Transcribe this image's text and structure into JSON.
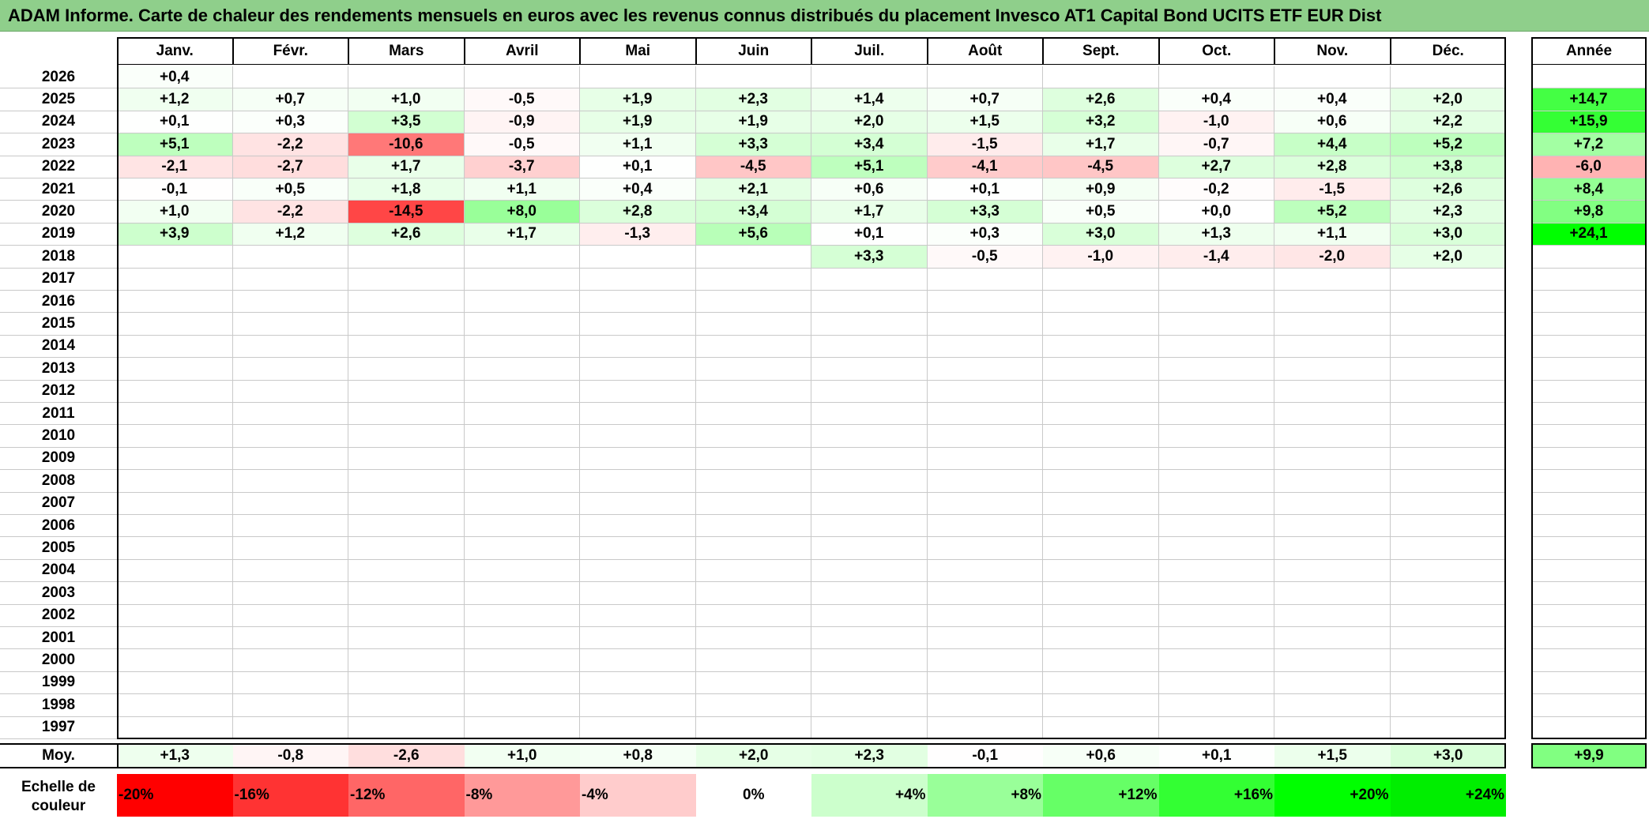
{
  "title": "ADAM Informe. Carte de chaleur des rendements mensuels en euros avec les revenus connus distribués du placement Invesco AT1 Capital Bond UCITS ETF EUR Dist",
  "chart_data": {
    "type": "heatmap",
    "title": "ADAM Informe. Carte de chaleur des rendements mensuels en euros avec les revenus connus distribués du placement Invesco AT1 Capital Bond UCITS ETF EUR Dist",
    "columns": [
      "Janv.",
      "Févr.",
      "Mars",
      "Avril",
      "Mai",
      "Juin",
      "Juil.",
      "Août",
      "Sept.",
      "Oct.",
      "Nov.",
      "Déc."
    ],
    "year_column_label": "Année",
    "average_row_label": "Moy.",
    "rows": [
      {
        "year": "2026",
        "months": [
          "+0,4",
          "",
          "",
          "",
          "",
          "",
          "",
          "",
          "",
          "",
          "",
          ""
        ],
        "annual": ""
      },
      {
        "year": "2025",
        "months": [
          "+1,2",
          "+0,7",
          "+1,0",
          "-0,5",
          "+1,9",
          "+2,3",
          "+1,4",
          "+0,7",
          "+2,6",
          "+0,4",
          "+0,4",
          "+2,0"
        ],
        "annual": "+14,7"
      },
      {
        "year": "2024",
        "months": [
          "+0,1",
          "+0,3",
          "+3,5",
          "-0,9",
          "+1,9",
          "+1,9",
          "+2,0",
          "+1,5",
          "+3,2",
          "-1,0",
          "+0,6",
          "+2,2"
        ],
        "annual": "+15,9"
      },
      {
        "year": "2023",
        "months": [
          "+5,1",
          "-2,2",
          "-10,6",
          "-0,5",
          "+1,1",
          "+3,3",
          "+3,4",
          "-1,5",
          "+1,7",
          "-0,7",
          "+4,4",
          "+5,2"
        ],
        "annual": "+7,2"
      },
      {
        "year": "2022",
        "months": [
          "-2,1",
          "-2,7",
          "+1,7",
          "-3,7",
          "+0,1",
          "-4,5",
          "+5,1",
          "-4,1",
          "-4,5",
          "+2,7",
          "+2,8",
          "+3,8"
        ],
        "annual": "-6,0"
      },
      {
        "year": "2021",
        "months": [
          "-0,1",
          "+0,5",
          "+1,8",
          "+1,1",
          "+0,4",
          "+2,1",
          "+0,6",
          "+0,1",
          "+0,9",
          "-0,2",
          "-1,5",
          "+2,6"
        ],
        "annual": "+8,4"
      },
      {
        "year": "2020",
        "months": [
          "+1,0",
          "-2,2",
          "-14,5",
          "+8,0",
          "+2,8",
          "+3,4",
          "+1,7",
          "+3,3",
          "+0,5",
          "+0,0",
          "+5,2",
          "+2,3"
        ],
        "annual": "+9,8"
      },
      {
        "year": "2019",
        "months": [
          "+3,9",
          "+1,2",
          "+2,6",
          "+1,7",
          "-1,3",
          "+5,6",
          "+0,1",
          "+0,3",
          "+3,0",
          "+1,3",
          "+1,1",
          "+3,0"
        ],
        "annual": "+24,1"
      },
      {
        "year": "2018",
        "months": [
          "",
          "",
          "",
          "",
          "",
          "",
          "+3,3",
          "-0,5",
          "-1,0",
          "-1,4",
          "-2,0",
          "+2,0"
        ],
        "annual": ""
      },
      {
        "year": "2017",
        "months": [
          "",
          "",
          "",
          "",
          "",
          "",
          "",
          "",
          "",
          "",
          "",
          ""
        ],
        "annual": ""
      },
      {
        "year": "2016",
        "months": [
          "",
          "",
          "",
          "",
          "",
          "",
          "",
          "",
          "",
          "",
          "",
          ""
        ],
        "annual": ""
      },
      {
        "year": "2015",
        "months": [
          "",
          "",
          "",
          "",
          "",
          "",
          "",
          "",
          "",
          "",
          "",
          ""
        ],
        "annual": ""
      },
      {
        "year": "2014",
        "months": [
          "",
          "",
          "",
          "",
          "",
          "",
          "",
          "",
          "",
          "",
          "",
          ""
        ],
        "annual": ""
      },
      {
        "year": "2013",
        "months": [
          "",
          "",
          "",
          "",
          "",
          "",
          "",
          "",
          "",
          "",
          "",
          ""
        ],
        "annual": ""
      },
      {
        "year": "2012",
        "months": [
          "",
          "",
          "",
          "",
          "",
          "",
          "",
          "",
          "",
          "",
          "",
          ""
        ],
        "annual": ""
      },
      {
        "year": "2011",
        "months": [
          "",
          "",
          "",
          "",
          "",
          "",
          "",
          "",
          "",
          "",
          "",
          ""
        ],
        "annual": ""
      },
      {
        "year": "2010",
        "months": [
          "",
          "",
          "",
          "",
          "",
          "",
          "",
          "",
          "",
          "",
          "",
          ""
        ],
        "annual": ""
      },
      {
        "year": "2009",
        "months": [
          "",
          "",
          "",
          "",
          "",
          "",
          "",
          "",
          "",
          "",
          "",
          ""
        ],
        "annual": ""
      },
      {
        "year": "2008",
        "months": [
          "",
          "",
          "",
          "",
          "",
          "",
          "",
          "",
          "",
          "",
          "",
          ""
        ],
        "annual": ""
      },
      {
        "year": "2007",
        "months": [
          "",
          "",
          "",
          "",
          "",
          "",
          "",
          "",
          "",
          "",
          "",
          ""
        ],
        "annual": ""
      },
      {
        "year": "2006",
        "months": [
          "",
          "",
          "",
          "",
          "",
          "",
          "",
          "",
          "",
          "",
          "",
          ""
        ],
        "annual": ""
      },
      {
        "year": "2005",
        "months": [
          "",
          "",
          "",
          "",
          "",
          "",
          "",
          "",
          "",
          "",
          "",
          ""
        ],
        "annual": ""
      },
      {
        "year": "2004",
        "months": [
          "",
          "",
          "",
          "",
          "",
          "",
          "",
          "",
          "",
          "",
          "",
          ""
        ],
        "annual": ""
      },
      {
        "year": "2003",
        "months": [
          "",
          "",
          "",
          "",
          "",
          "",
          "",
          "",
          "",
          "",
          "",
          ""
        ],
        "annual": ""
      },
      {
        "year": "2002",
        "months": [
          "",
          "",
          "",
          "",
          "",
          "",
          "",
          "",
          "",
          "",
          "",
          ""
        ],
        "annual": ""
      },
      {
        "year": "2001",
        "months": [
          "",
          "",
          "",
          "",
          "",
          "",
          "",
          "",
          "",
          "",
          "",
          ""
        ],
        "annual": ""
      },
      {
        "year": "2000",
        "months": [
          "",
          "",
          "",
          "",
          "",
          "",
          "",
          "",
          "",
          "",
          "",
          ""
        ],
        "annual": ""
      },
      {
        "year": "1999",
        "months": [
          "",
          "",
          "",
          "",
          "",
          "",
          "",
          "",
          "",
          "",
          "",
          ""
        ],
        "annual": ""
      },
      {
        "year": "1998",
        "months": [
          "",
          "",
          "",
          "",
          "",
          "",
          "",
          "",
          "",
          "",
          "",
          ""
        ],
        "annual": ""
      },
      {
        "year": "1997",
        "months": [
          "",
          "",
          "",
          "",
          "",
          "",
          "",
          "",
          "",
          "",
          "",
          ""
        ],
        "annual": ""
      }
    ],
    "averages": {
      "months": [
        "+1,3",
        "-0,8",
        "-2,6",
        "+1,0",
        "+0,8",
        "+2,0",
        "+2,3",
        "-0,1",
        "+0,6",
        "+0,1",
        "+1,5",
        "+3,0"
      ],
      "annual": "+9,9"
    },
    "color_scale": {
      "label": "Echelle de couleur",
      "steps": [
        {
          "label": "-20%",
          "value": -20,
          "color": "#ff0000"
        },
        {
          "label": "-16%",
          "value": -16,
          "color": "#ff3333"
        },
        {
          "label": "-12%",
          "value": -12,
          "color": "#ff6666"
        },
        {
          "label": "-8%",
          "value": -8,
          "color": "#ff9999"
        },
        {
          "label": "-4%",
          "value": -4,
          "color": "#ffcccc"
        },
        {
          "label": "0%",
          "value": 0,
          "color": "#ffffff"
        },
        {
          "label": "+4%",
          "value": 4,
          "color": "#ccffcc"
        },
        {
          "label": "+8%",
          "value": 8,
          "color": "#99ff99"
        },
        {
          "label": "+12%",
          "value": 12,
          "color": "#66ff66"
        },
        {
          "label": "+16%",
          "value": 16,
          "color": "#33ff33"
        },
        {
          "label": "+20%",
          "value": 20,
          "color": "#00ff00"
        },
        {
          "label": "+24%",
          "value": 24,
          "color": "#00ee00"
        }
      ]
    }
  }
}
